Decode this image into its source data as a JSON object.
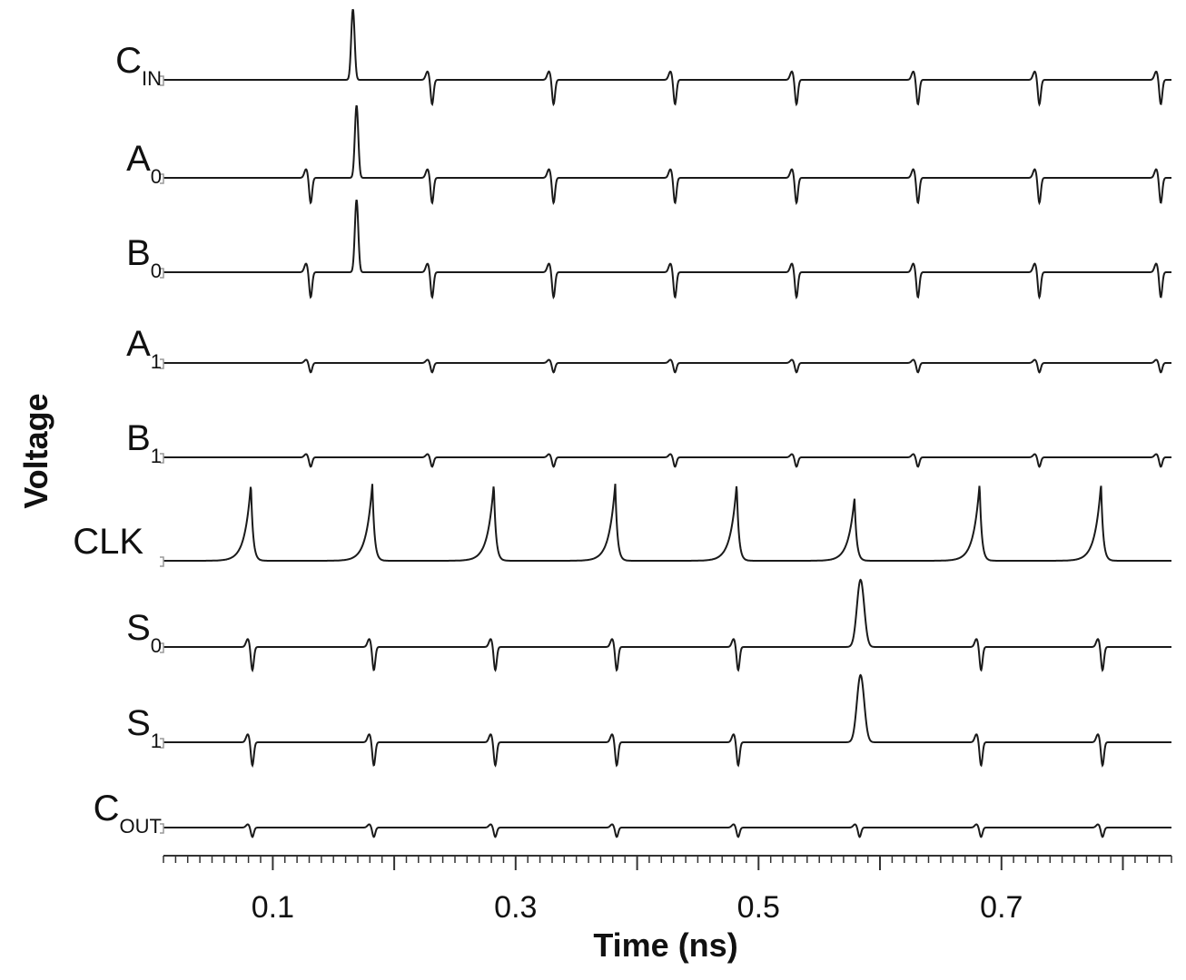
{
  "chart_data": {
    "type": "line",
    "title": "",
    "xlabel": "Time (ns)",
    "ylabel": "Voltage",
    "xlim": [
      0.01,
      0.84
    ],
    "x_ticks": [
      0.1,
      0.3,
      0.5,
      0.7
    ],
    "x_tick_labels": [
      "0.1",
      "0.3",
      "0.5",
      "0.7"
    ],
    "grid": false,
    "colors": {
      "trace": "#1a1a1a",
      "axis": "#333333"
    },
    "series": [
      {
        "name": "C_IN",
        "label_main": "C",
        "label_sub": "IN",
        "spikes": [
          {
            "t": 0.166,
            "amp": 1.0,
            "width": 0.0014
          }
        ],
        "glitches": [
          0.23,
          0.33,
          0.43,
          0.53,
          0.63,
          0.73,
          0.83
        ]
      },
      {
        "name": "A_0",
        "label_main": "A",
        "label_sub": "0",
        "spikes": [
          {
            "t": 0.169,
            "amp": 1.0,
            "width": 0.0014
          }
        ],
        "glitches": [
          0.13,
          0.23,
          0.33,
          0.43,
          0.53,
          0.63,
          0.73,
          0.83
        ]
      },
      {
        "name": "B_0",
        "label_main": "B",
        "label_sub": "0",
        "spikes": [
          {
            "t": 0.169,
            "amp": 1.0,
            "width": 0.0014
          }
        ],
        "glitches": [
          0.13,
          0.23,
          0.33,
          0.43,
          0.53,
          0.63,
          0.73,
          0.83
        ]
      },
      {
        "name": "A_1",
        "label_main": "A",
        "label_sub": "1",
        "spikes": [],
        "glitches": [
          0.13,
          0.23,
          0.33,
          0.43,
          0.53,
          0.63,
          0.73,
          0.83
        ]
      },
      {
        "name": "B_1",
        "label_main": "B",
        "label_sub": "1",
        "spikes": [],
        "glitches": [
          0.13,
          0.23,
          0.33,
          0.43,
          0.53,
          0.63,
          0.73,
          0.83
        ]
      },
      {
        "name": "CLK",
        "label_main": "CLK",
        "label_sub": "",
        "spikes": [
          {
            "t": 0.082,
            "amp": 1.0,
            "width": 0.005
          },
          {
            "t": 0.182,
            "amp": 1.0,
            "width": 0.005
          },
          {
            "t": 0.282,
            "amp": 1.0,
            "width": 0.005
          },
          {
            "t": 0.382,
            "amp": 1.0,
            "width": 0.005
          },
          {
            "t": 0.482,
            "amp": 1.0,
            "width": 0.005
          },
          {
            "t": 0.579,
            "amp": 0.82,
            "width": 0.005
          },
          {
            "t": 0.682,
            "amp": 1.0,
            "width": 0.005
          },
          {
            "t": 0.782,
            "amp": 1.0,
            "width": 0.005
          }
        ],
        "glitches": []
      },
      {
        "name": "S_0",
        "label_main": "S",
        "label_sub": "0",
        "spikes": [
          {
            "t": 0.584,
            "amp": 1.0,
            "width": 0.003
          }
        ],
        "glitches": [
          0.082,
          0.182,
          0.282,
          0.382,
          0.482,
          0.682,
          0.782
        ]
      },
      {
        "name": "S_1",
        "label_main": "S",
        "label_sub": "1",
        "spikes": [
          {
            "t": 0.584,
            "amp": 1.0,
            "width": 0.003
          }
        ],
        "glitches": [
          0.082,
          0.182,
          0.282,
          0.382,
          0.482,
          0.682,
          0.782
        ]
      },
      {
        "name": "C_OUT",
        "label_main": "C",
        "label_sub": "OUT",
        "spikes": [],
        "glitches": [
          0.082,
          0.182,
          0.282,
          0.382,
          0.482,
          0.582,
          0.682,
          0.782
        ]
      }
    ]
  }
}
